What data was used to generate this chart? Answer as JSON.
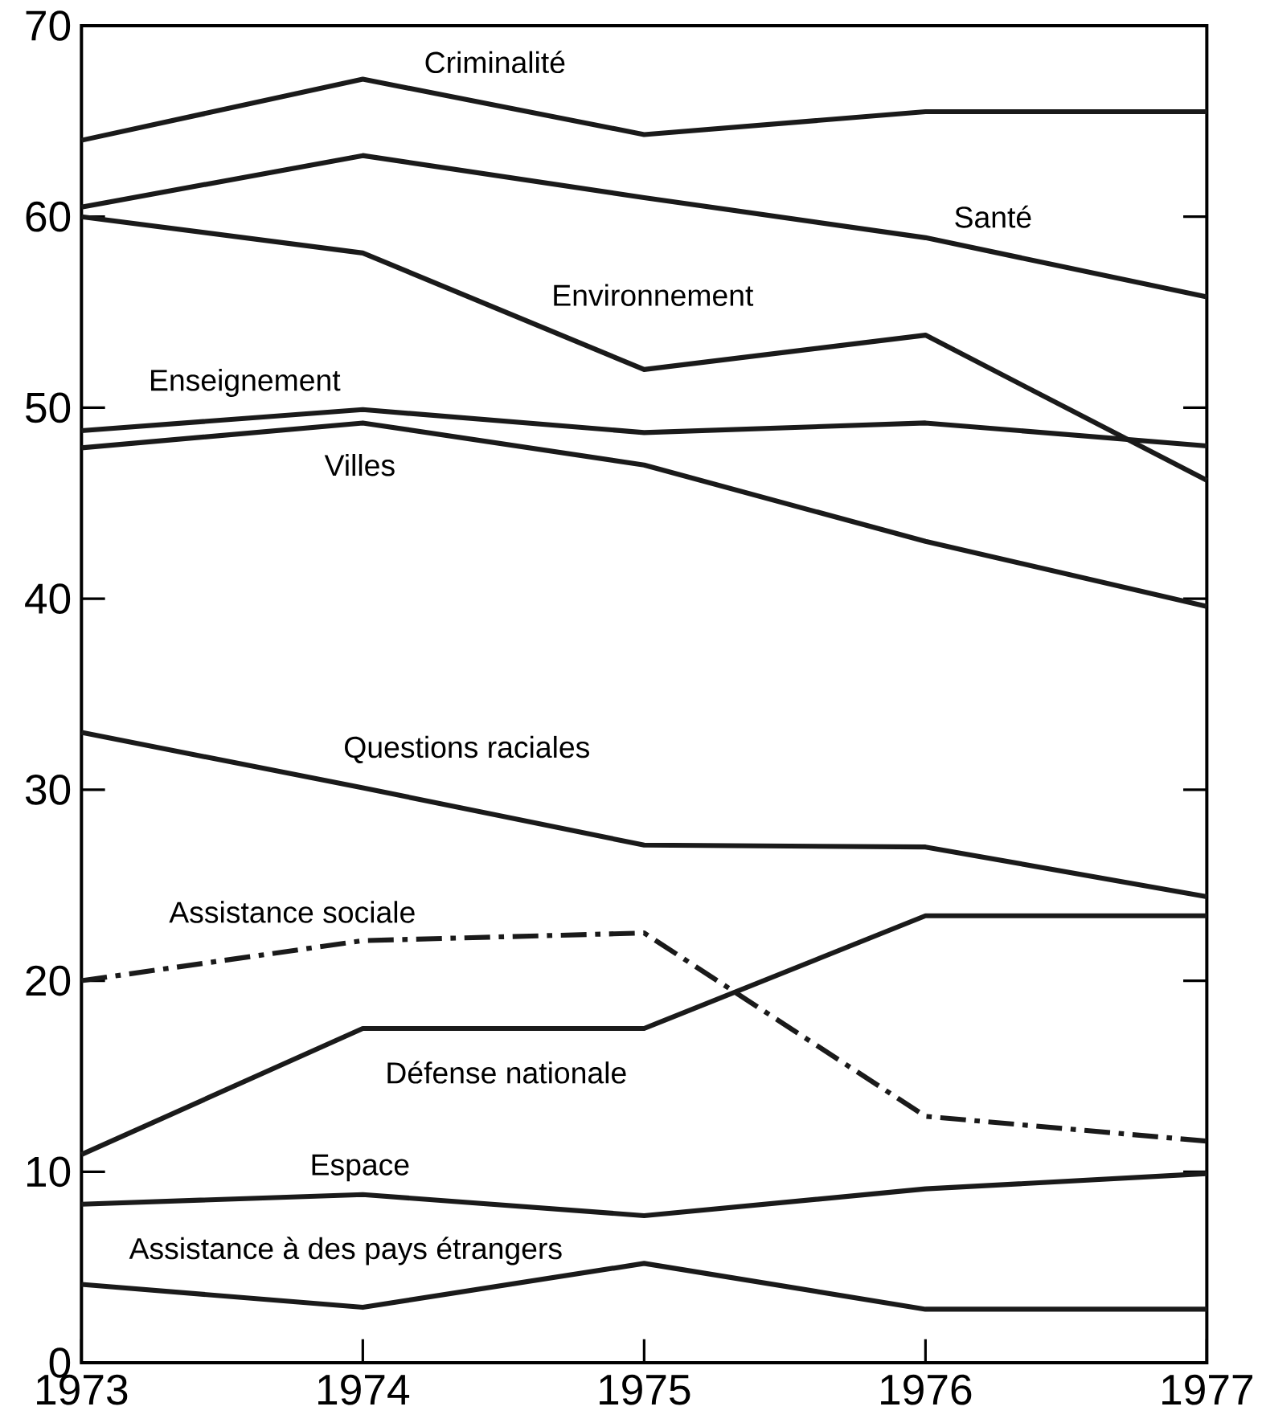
{
  "chart_data": {
    "type": "line",
    "x": [
      1973,
      1974,
      1975,
      1976,
      1977
    ],
    "xlim": [
      1973,
      1977
    ],
    "xticks": [
      1973,
      1974,
      1975,
      1976,
      1977
    ],
    "ylim": [
      0,
      70
    ],
    "yticks": [
      0,
      10,
      20,
      30,
      40,
      50,
      60,
      70
    ],
    "grid": false,
    "legend": false,
    "marker": "none",
    "series": [
      {
        "name": "Criminalité",
        "color": "#1a1a1a",
        "values": [
          64.0,
          67.2,
          64.3,
          65.5,
          65.5
        ]
      },
      {
        "name": "Santé",
        "color": "#1a1a1a",
        "values": [
          60.5,
          63.2,
          61.0,
          58.9,
          55.8
        ]
      },
      {
        "name": "Environnement",
        "color": "#1a1a1a",
        "values": [
          60.0,
          58.1,
          52.0,
          53.8,
          46.2
        ]
      },
      {
        "name": "Enseignement",
        "color": "#1a1a1a",
        "values": [
          48.8,
          49.9,
          48.7,
          49.2,
          48.0
        ]
      },
      {
        "name": "Villes",
        "color": "#1a1a1a",
        "values": [
          47.9,
          49.2,
          47.0,
          43.0,
          39.6
        ]
      },
      {
        "name": "Questions raciales",
        "color": "#1a1a1a",
        "values": [
          33.0,
          30.1,
          27.1,
          27.0,
          24.4
        ]
      },
      {
        "name": "Assistance sociale",
        "color": "#1a1a1a",
        "line_style": "dashdot",
        "values": [
          20.0,
          22.1,
          22.5,
          12.9,
          11.6
        ]
      },
      {
        "name": "Défense nationale",
        "color": "#1a1a1a",
        "values": [
          10.9,
          17.5,
          17.5,
          23.4,
          23.4
        ]
      },
      {
        "name": "Espace",
        "color": "#1a1a1a",
        "values": [
          8.3,
          8.8,
          7.7,
          9.1,
          9.9
        ]
      },
      {
        "name": "Assistance à des pays étrangers",
        "color": "#1a1a1a",
        "values": [
          4.1,
          2.9,
          5.2,
          2.8,
          2.8
        ]
      }
    ]
  }
}
